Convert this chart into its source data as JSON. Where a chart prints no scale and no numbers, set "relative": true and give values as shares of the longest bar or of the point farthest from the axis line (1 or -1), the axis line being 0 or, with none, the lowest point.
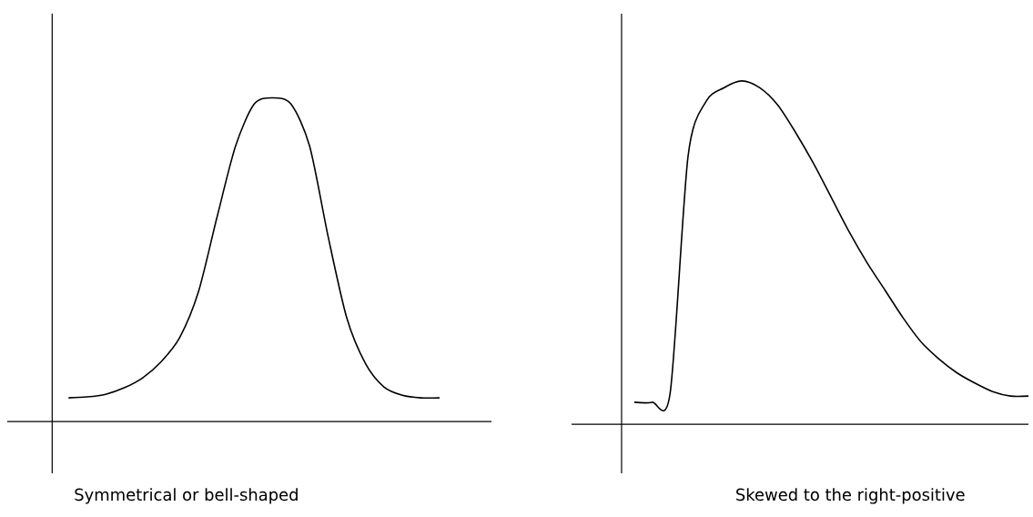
{
  "chart_data": [
    {
      "type": "line",
      "relative": true,
      "color": "#000000",
      "xlabel": "Symmetrical or bell-shaped",
      "categories": [
        null,
        null,
        null,
        null,
        null,
        null,
        null,
        null,
        null,
        null,
        null,
        null,
        null,
        null,
        null,
        null,
        null,
        null,
        null,
        null,
        null
      ],
      "values": [
        0.073,
        0.076,
        0.084,
        0.104,
        0.135,
        0.185,
        0.26,
        0.4,
        0.63,
        0.85,
        0.98,
        1,
        0.98,
        0.85,
        0.57,
        0.32,
        0.18,
        0.107,
        0.081,
        0.073,
        0.073
      ]
    },
    {
      "type": "line",
      "relative": true,
      "color": "#000000",
      "xlabel": "Skewed to the right-positive",
      "categories": [
        null,
        null,
        null,
        null,
        null,
        null,
        null,
        null,
        null,
        null,
        null,
        null,
        null,
        null,
        null,
        null,
        null,
        null,
        null,
        null,
        null,
        null,
        null
      ],
      "values": [
        0.064,
        0.064,
        0.09,
        0.78,
        0.94,
        0.98,
        1,
        0.98,
        0.93,
        0.85,
        0.76,
        0.66,
        0.56,
        0.47,
        0.39,
        0.31,
        0.24,
        0.19,
        0.15,
        0.12,
        0.095,
        0.082,
        0.082
      ]
    }
  ]
}
